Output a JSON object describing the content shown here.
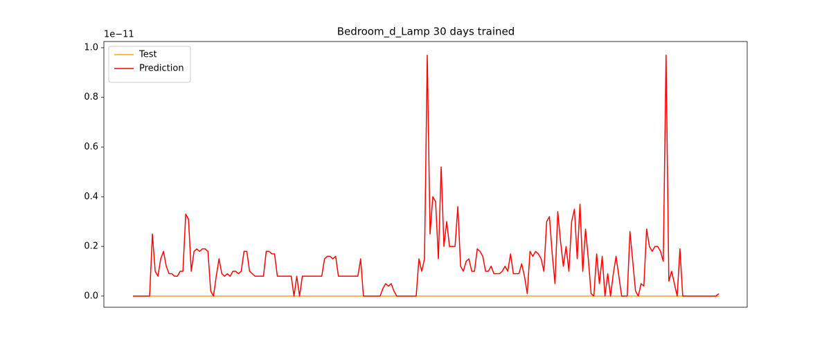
{
  "chart_data": {
    "type": "line",
    "title": "Bedroom_d_Lamp 30 days trained",
    "y_offset_label": "1e−11",
    "ylim": [
      -0.045,
      1.025
    ],
    "yticks": [
      {
        "value": 0,
        "label": "0.0"
      },
      0.2,
      0.4,
      0.6,
      0.8,
      {
        "value": 1,
        "label": "1.0"
      }
    ],
    "legend": "upper left",
    "grid": false,
    "series": [
      {
        "name": "Test",
        "color": "#ffa500",
        "values": [
          0,
          0,
          0,
          0,
          0,
          0,
          0,
          0,
          0,
          0,
          0,
          0,
          0,
          0,
          0,
          0,
          0,
          0,
          0,
          0,
          0,
          0,
          0,
          0,
          0,
          0,
          0,
          0,
          0,
          0,
          0,
          0,
          0,
          0,
          0,
          0,
          0,
          0,
          0,
          0,
          0,
          0,
          0,
          0,
          0,
          0,
          0,
          0,
          0,
          0,
          0,
          0,
          0,
          0,
          0,
          0,
          0,
          0,
          0,
          0,
          0,
          0,
          0,
          0,
          0,
          0,
          0,
          0,
          0,
          0,
          0,
          0,
          0,
          0,
          0,
          0,
          0,
          0,
          0,
          0,
          0,
          0,
          0,
          0,
          0,
          0,
          0,
          0,
          0,
          0,
          0,
          0,
          0,
          0,
          0,
          0,
          0,
          0,
          0,
          0,
          0,
          0,
          0,
          0,
          0,
          0,
          0,
          0,
          0,
          0,
          0,
          0,
          0,
          0,
          0,
          0,
          0,
          0,
          0,
          0,
          0,
          0,
          0,
          0,
          0,
          0,
          0,
          0,
          0,
          0,
          0,
          0,
          0,
          0,
          0,
          0,
          0,
          0,
          0,
          0,
          0,
          0,
          0,
          0,
          0,
          0,
          0,
          0,
          0,
          0,
          0,
          0,
          0,
          0,
          0,
          0,
          0,
          0,
          0,
          0,
          0,
          0,
          0,
          0,
          0,
          0,
          0,
          0,
          0,
          0,
          0,
          0,
          0,
          0,
          0,
          0,
          0,
          0,
          0,
          0,
          0,
          0,
          0,
          0,
          0,
          0,
          0,
          0,
          0,
          0,
          0,
          0,
          0,
          0,
          0,
          0,
          0,
          0,
          0,
          0,
          0,
          0,
          0,
          0,
          0,
          0,
          0,
          0,
          0,
          0,
          0,
          0
        ]
      },
      {
        "name": "Prediction",
        "color": "#ff0000",
        "values": [
          0,
          0,
          0,
          0,
          0,
          0,
          0,
          0.25,
          0.1,
          0.08,
          0.15,
          0.18,
          0.12,
          0.09,
          0.09,
          0.08,
          0.08,
          0.1,
          0.1,
          0.33,
          0.31,
          0.1,
          0.18,
          0.19,
          0.18,
          0.19,
          0.19,
          0.18,
          0.02,
          0,
          0.08,
          0.15,
          0.09,
          0.08,
          0.09,
          0.08,
          0.1,
          0.1,
          0.09,
          0.1,
          0.18,
          0.18,
          0.1,
          0.09,
          0.08,
          0.08,
          0.08,
          0.08,
          0.18,
          0.18,
          0.17,
          0.17,
          0.08,
          0.08,
          0.08,
          0.08,
          0.08,
          0.08,
          0,
          0.08,
          0,
          0.08,
          0.08,
          0.08,
          0.08,
          0.08,
          0.08,
          0.08,
          0.08,
          0.15,
          0.16,
          0.16,
          0.15,
          0.16,
          0.08,
          0.08,
          0.08,
          0.08,
          0.08,
          0.08,
          0.08,
          0.08,
          0.15,
          0,
          0,
          0,
          0,
          0,
          0,
          0,
          0.03,
          0.05,
          0.04,
          0.05,
          0.02,
          0,
          0,
          0,
          0,
          0,
          0,
          0,
          0,
          0.15,
          0.1,
          0.15,
          0.97,
          0.25,
          0.4,
          0.38,
          0.15,
          0.52,
          0.2,
          0.3,
          0.2,
          0.2,
          0.2,
          0.36,
          0.12,
          0.1,
          0.14,
          0.15,
          0.1,
          0.1,
          0.19,
          0.18,
          0.16,
          0.1,
          0.1,
          0.12,
          0.09,
          0.09,
          0.09,
          0.1,
          0.12,
          0.1,
          0.17,
          0.09,
          0.09,
          0.09,
          0.13,
          0.08,
          0.01,
          0.18,
          0.16,
          0.18,
          0.17,
          0.15,
          0.1,
          0.3,
          0.32,
          0.17,
          0.05,
          0.34,
          0.22,
          0.12,
          0.2,
          0.1,
          0.3,
          0.35,
          0.15,
          0.37,
          0.1,
          0.27,
          0.15,
          0.01,
          0,
          0.17,
          0.05,
          0.16,
          0,
          0.09,
          0,
          0.09,
          0.16,
          0.08,
          0,
          0,
          0,
          0.26,
          0.14,
          0.02,
          0,
          0.05,
          0.04,
          0.27,
          0.2,
          0.18,
          0.2,
          0.2,
          0.18,
          0.14,
          0.97,
          0.06,
          0.1,
          0.05,
          0,
          0.19,
          0,
          0,
          0,
          0,
          0,
          0,
          0,
          0,
          0,
          0,
          0,
          0,
          0,
          0.01
        ]
      }
    ]
  }
}
